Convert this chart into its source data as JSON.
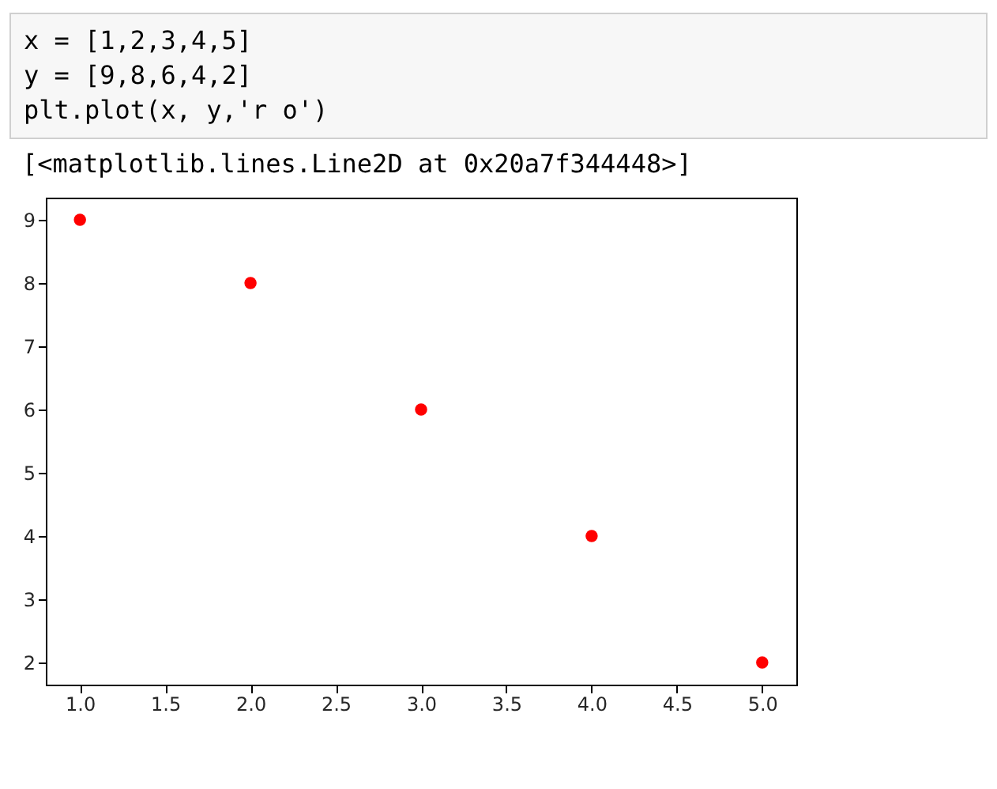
{
  "chart_data": {
    "type": "scatter",
    "annotations": [
      "x = [1,2,3,4,5]",
      "y = [9,8,6,4,2]",
      "plt.plot(x, y,'r o')",
      "[<matplotlib.lines.Line2D at 0x20a7f344448>]"
    ],
    "x": [
      1,
      2,
      3,
      4,
      5
    ],
    "series": [
      {
        "color": "#ff0000",
        "values": [
          9,
          8,
          6,
          4,
          2
        ]
      }
    ],
    "marker": "circle",
    "xlim": [
      0.8,
      5.2
    ],
    "ylim": [
      1.65,
      9.35
    ],
    "xticks": [
      {
        "value": 1,
        "label": "1.0"
      },
      {
        "value": 1.5,
        "label": "1.5"
      },
      {
        "value": 2,
        "label": "2.0"
      },
      {
        "value": 2.5,
        "label": "2.5"
      },
      {
        "value": 3,
        "label": "3.0"
      },
      {
        "value": 3.5,
        "label": "3.5"
      },
      {
        "value": 4,
        "label": "4.0"
      },
      {
        "value": 4.5,
        "label": "4.5"
      },
      {
        "value": 5,
        "label": "5.0"
      }
    ],
    "yticks": [
      2,
      3,
      4,
      5,
      6,
      7,
      8,
      9
    ],
    "grid": false
  }
}
